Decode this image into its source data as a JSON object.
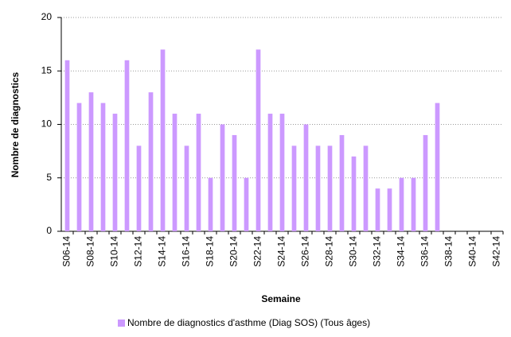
{
  "chart_data": {
    "type": "bar",
    "x_label": "Semaine",
    "y_label": "Nombre de diagnostics",
    "categories": [
      "S06-14",
      null,
      "S08-14",
      null,
      "S10-14",
      null,
      "S12-14",
      null,
      "S14-14",
      null,
      "S16-14",
      null,
      "S18-14",
      null,
      "S20-14",
      null,
      "S22-14",
      null,
      "S24-14",
      null,
      "S26-14",
      null,
      "S28-14",
      null,
      "S30-14",
      null,
      "S32-14",
      null,
      "S34-14",
      null,
      "S36-14",
      null,
      "S38-14",
      null,
      "S40-14",
      null,
      "S42-14"
    ],
    "series": [
      {
        "name": "Nombre de diagnostics d'asthme (Diag SOS) (Tous âges)",
        "color": "#cc99ff",
        "values": [
          16,
          12,
          13,
          12,
          11,
          16,
          8,
          13,
          17,
          11,
          8,
          11,
          5,
          10,
          9,
          5,
          17,
          11,
          11,
          8,
          10,
          8,
          8,
          9,
          7,
          8,
          4,
          4,
          5,
          5,
          9,
          12,
          null,
          null,
          null,
          null,
          null
        ]
      }
    ],
    "ylim": [
      0,
      20
    ],
    "yticks": [
      0,
      5,
      10,
      15,
      20
    ],
    "grid": true,
    "legend": "bottom"
  }
}
